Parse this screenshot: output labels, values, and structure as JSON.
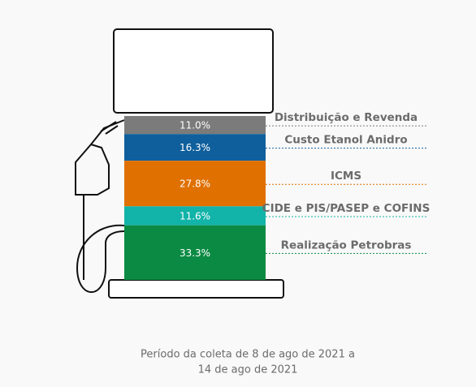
{
  "chart_data": {
    "type": "stacked_bar",
    "series": [
      {
        "name": "Distribuição e Revenda",
        "color": "#7b7b7b",
        "values": [
          11.0
        ],
        "value_labels": [
          "11.0%"
        ]
      },
      {
        "name": "Custo Etanol Anidro",
        "color": "#0f5f9c",
        "values": [
          16.3
        ],
        "value_labels": [
          "16.3%"
        ]
      },
      {
        "name": "ICMS",
        "color": "#e07000",
        "values": [
          27.8
        ],
        "value_labels": [
          "27.8%"
        ]
      },
      {
        "name": "CIDE e PIS/PASEP e COFINS",
        "color": "#12b3a8",
        "values": [
          11.6
        ],
        "value_labels": [
          "11.6%"
        ]
      },
      {
        "name": "Realização Petrobras",
        "color": "#0b8a43",
        "values": [
          33.3
        ],
        "value_labels": [
          "33.3%"
        ]
      }
    ],
    "footnote": [
      "Período da coleta de 8 de ago de 2021 a",
      "14 de ago de 2021"
    ]
  }
}
